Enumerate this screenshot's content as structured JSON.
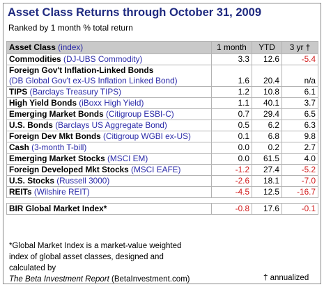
{
  "title": "Asset Class Returns through October 31, 2009",
  "subtitle": "Ranked by 1 month % total return",
  "table": {
    "headers": {
      "asset_class": "Asset Class",
      "index": "(index)",
      "month": "1 month",
      "ytd": "YTD",
      "yr3": "3 yr †"
    },
    "rows": [
      {
        "name": "Commodities",
        "index": "(DJ-UBS Commodity)",
        "month": "3.3",
        "ytd": "12.6",
        "yr3": "-5.4"
      },
      {
        "name": "Foreign Gov't Inflation-Linked Bonds",
        "index": "(DB Global Gov't ex-US Inflation Linked Bond)",
        "month": "1.6",
        "ytd": "20.4",
        "yr3": "n/a"
      },
      {
        "name": "TIPS",
        "index": "(Barclays Treasury TIPS)",
        "month": "1.2",
        "ytd": "10.8",
        "yr3": "6.1"
      },
      {
        "name": "High Yield Bonds",
        "index": "(iBoxx High Yield)",
        "month": "1.1",
        "ytd": "40.1",
        "yr3": "3.7"
      },
      {
        "name": "Emerging Market Bonds",
        "index": "(Citigroup ESBI-C)",
        "month": "0.7",
        "ytd": "29.4",
        "yr3": "6.5"
      },
      {
        "name": "U.S. Bonds",
        "index": "(Barclays US Aggregate Bond)",
        "month": "0.5",
        "ytd": "6.2",
        "yr3": "6.3"
      },
      {
        "name": "Foreign Dev Mkt Bonds",
        "index": "(Citigroup WGBI ex-US)",
        "month": "0.1",
        "ytd": "6.8",
        "yr3": "9.8"
      },
      {
        "name": "Cash",
        "index": "(3-month T-bill)",
        "month": "0.0",
        "ytd": "0.2",
        "yr3": "2.7"
      },
      {
        "name": "Emerging Market Stocks",
        "index": "(MSCI EM)",
        "month": "0.0",
        "ytd": "61.5",
        "yr3": "4.0"
      },
      {
        "name": "Foreign Developed Mkt Stocks",
        "index": "(MSCI EAFE)",
        "month": "-1.2",
        "ytd": "27.4",
        "yr3": "-5.2"
      },
      {
        "name": "U.S. Stocks",
        "index": "(Russell 3000)",
        "month": "-2.6",
        "ytd": "18.1",
        "yr3": "-7.0"
      },
      {
        "name": "REITs",
        "index": "(Wilshire REIT)",
        "month": "-4.5",
        "ytd": "12.5",
        "yr3": "-16.7"
      }
    ],
    "summary": {
      "name": "BIR Global Market Index*",
      "month": "-0.8",
      "ytd": "17.6",
      "yr3": "-0.1"
    }
  },
  "footnote": {
    "line1": "*Global Market Index is a market-value weighted",
    "line2": "index of global asset classes, designed and",
    "line3": "calculated by",
    "publication": "The Beta Investment Report",
    "site": " (BetaInvestment.com)",
    "annualized": "† annualized"
  },
  "colors": {
    "title": "#1f2a80",
    "index_text": "#2a2aa8",
    "negative": "#d11a1a",
    "header_bg": "#c9c9c9"
  }
}
